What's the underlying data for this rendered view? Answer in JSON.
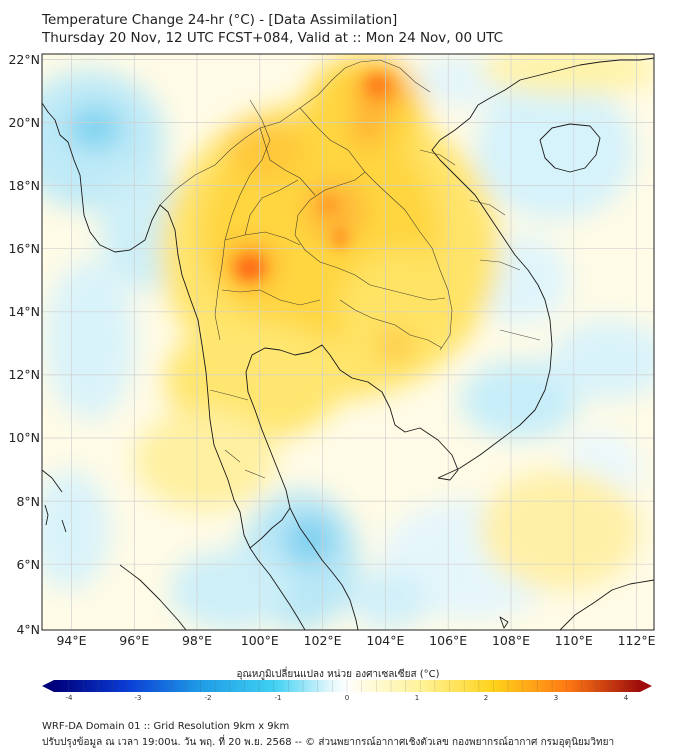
{
  "title": {
    "line1": "Temperature Change 24-hr (°C) - [Data Assimilation]",
    "line2": "Thursday 20 Nov, 12 UTC FCST+084, Valid at :: Mon 24 Nov, 00 UTC"
  },
  "axes": {
    "lat_labels": [
      "22°N",
      "20°N",
      "18°N",
      "16°N",
      "14°N",
      "12°N",
      "10°N",
      "8°N",
      "6°N",
      "4°N"
    ],
    "lon_labels": [
      "94°E",
      "96°E",
      "98°E",
      "100°E",
      "102°E",
      "104°E",
      "106°E",
      "108°E",
      "110°E",
      "112°E"
    ],
    "lat_range": [
      4,
      22.25
    ],
    "lon_range": [
      93,
      112.5
    ]
  },
  "colorbar": {
    "title": "อุณหภูมิเปลี่ยนแปลง หน่วย องศาเซลเซียส (°C)",
    "range": [
      -4,
      4
    ],
    "ticks": [
      "-4",
      "-3",
      "-2",
      "-1",
      "0",
      "1",
      "2",
      "3",
      "4"
    ],
    "colors": {
      "neg4": "#00007a",
      "neg3": "#0a3cd6",
      "neg2": "#1f9ce6",
      "neg1": "#3fd0f2",
      "zero": "#ffffff",
      "pos1": "#fff39a",
      "pos2": "#ffd21a",
      "pos3": "#ff7a14",
      "pos4": "#9e0c0c"
    }
  },
  "footer": {
    "line1": "WRF-DA Domain 01 :: Grid Resolution 9km x 9km",
    "line2": "ปรับปรุงข้อมูล ณ เวลา 19:00น. วัน พฤ. ที่ 20 พ.ย. 2568 -- © ส่วนพยากรณ์อากาศเชิงตัวเลข กองพยากรณ์อากาศ กรมอุตุนิยมวิทยา"
  }
}
